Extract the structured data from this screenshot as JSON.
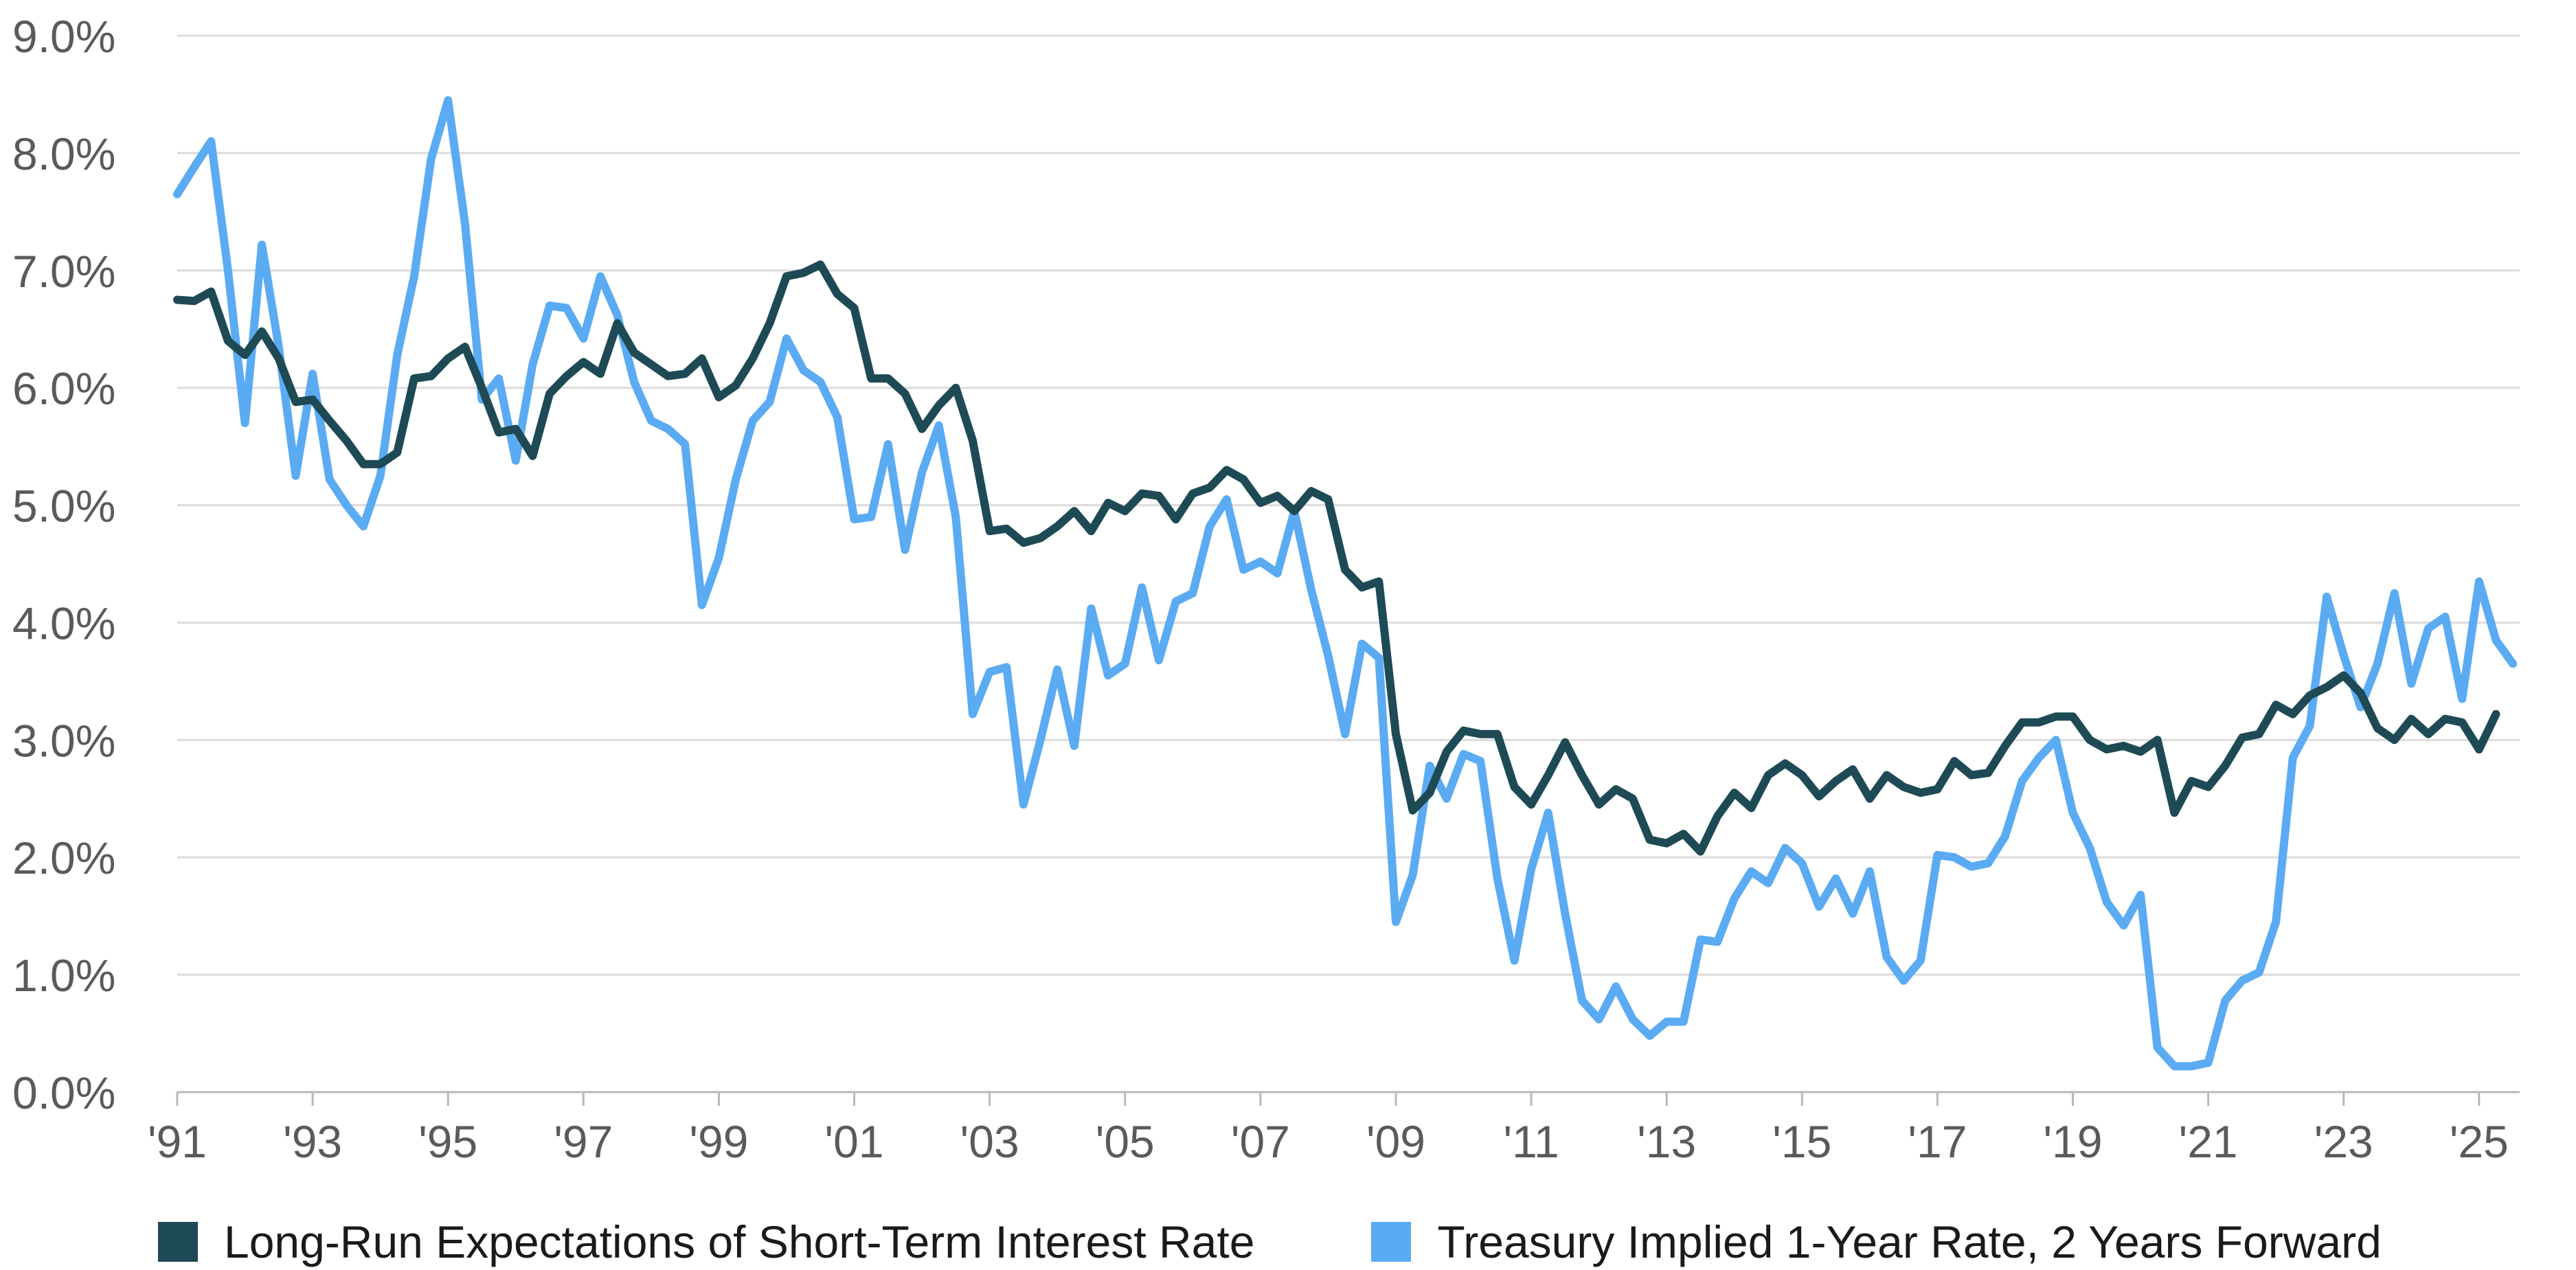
{
  "chart_data": {
    "type": "line",
    "ylim": [
      0,
      9
    ],
    "xlim": [
      1991,
      2025.6
    ],
    "y_ticks": [
      {
        "value": 0,
        "label": "0.0%"
      },
      {
        "value": 1,
        "label": "1.0%"
      },
      {
        "value": 2,
        "label": "2.0%"
      },
      {
        "value": 3,
        "label": "3.0%"
      },
      {
        "value": 4,
        "label": "4.0%"
      },
      {
        "value": 5,
        "label": "5.0%"
      },
      {
        "value": 6,
        "label": "6.0%"
      },
      {
        "value": 7,
        "label": "7.0%"
      },
      {
        "value": 8,
        "label": "8.0%"
      },
      {
        "value": 9,
        "label": "9.0%"
      }
    ],
    "x_ticks": [
      {
        "value": 1991,
        "label": "'91"
      },
      {
        "value": 1993,
        "label": "'93"
      },
      {
        "value": 1995,
        "label": "'95"
      },
      {
        "value": 1997,
        "label": "'97"
      },
      {
        "value": 1999,
        "label": "'99"
      },
      {
        "value": 2001,
        "label": "'01"
      },
      {
        "value": 2003,
        "label": "'03"
      },
      {
        "value": 2005,
        "label": "'05"
      },
      {
        "value": 2007,
        "label": "'07"
      },
      {
        "value": 2009,
        "label": "'09"
      },
      {
        "value": 2011,
        "label": "'11"
      },
      {
        "value": 2013,
        "label": "'13"
      },
      {
        "value": 2015,
        "label": "'15"
      },
      {
        "value": 2017,
        "label": "'17"
      },
      {
        "value": 2019,
        "label": "'19"
      },
      {
        "value": 2021,
        "label": "'21"
      },
      {
        "value": 2023,
        "label": "'23"
      },
      {
        "value": 2025,
        "label": "'25"
      }
    ],
    "grid": "horizontal",
    "legend_position": "bottom",
    "series": [
      {
        "name": "Long-Run Expectations of Short-Term Interest Rate",
        "color": "#1e4a55",
        "points": [
          [
            1991.0,
            6.75
          ],
          [
            1991.25,
            6.74
          ],
          [
            1991.5,
            6.82
          ],
          [
            1991.75,
            6.4
          ],
          [
            1992.0,
            6.28
          ],
          [
            1992.25,
            6.48
          ],
          [
            1992.5,
            6.25
          ],
          [
            1992.75,
            5.88
          ],
          [
            1993.0,
            5.9
          ],
          [
            1993.25,
            5.72
          ],
          [
            1993.5,
            5.55
          ],
          [
            1993.75,
            5.35
          ],
          [
            1994.0,
            5.35
          ],
          [
            1994.25,
            5.45
          ],
          [
            1994.5,
            6.08
          ],
          [
            1994.75,
            6.1
          ],
          [
            1995.0,
            6.25
          ],
          [
            1995.25,
            6.35
          ],
          [
            1995.5,
            6.0
          ],
          [
            1995.75,
            5.62
          ],
          [
            1996.0,
            5.65
          ],
          [
            1996.25,
            5.42
          ],
          [
            1996.5,
            5.95
          ],
          [
            1996.75,
            6.1
          ],
          [
            1997.0,
            6.22
          ],
          [
            1997.25,
            6.12
          ],
          [
            1997.5,
            6.55
          ],
          [
            1997.75,
            6.3
          ],
          [
            1998.0,
            6.2
          ],
          [
            1998.25,
            6.1
          ],
          [
            1998.5,
            6.12
          ],
          [
            1998.75,
            6.25
          ],
          [
            1999.0,
            5.92
          ],
          [
            1999.25,
            6.02
          ],
          [
            1999.5,
            6.25
          ],
          [
            1999.75,
            6.55
          ],
          [
            2000.0,
            6.95
          ],
          [
            2000.25,
            6.98
          ],
          [
            2000.5,
            7.05
          ],
          [
            2000.75,
            6.8
          ],
          [
            2001.0,
            6.68
          ],
          [
            2001.25,
            6.08
          ],
          [
            2001.5,
            6.08
          ],
          [
            2001.75,
            5.95
          ],
          [
            2002.0,
            5.65
          ],
          [
            2002.25,
            5.85
          ],
          [
            2002.5,
            6.0
          ],
          [
            2002.75,
            5.55
          ],
          [
            2003.0,
            4.78
          ],
          [
            2003.25,
            4.8
          ],
          [
            2003.5,
            4.68
          ],
          [
            2003.75,
            4.72
          ],
          [
            2004.0,
            4.82
          ],
          [
            2004.25,
            4.95
          ],
          [
            2004.5,
            4.78
          ],
          [
            2004.75,
            5.02
          ],
          [
            2005.0,
            4.95
          ],
          [
            2005.25,
            5.1
          ],
          [
            2005.5,
            5.08
          ],
          [
            2005.75,
            4.88
          ],
          [
            2006.0,
            5.1
          ],
          [
            2006.25,
            5.15
          ],
          [
            2006.5,
            5.3
          ],
          [
            2006.75,
            5.22
          ],
          [
            2007.0,
            5.02
          ],
          [
            2007.25,
            5.08
          ],
          [
            2007.5,
            4.95
          ],
          [
            2007.75,
            5.12
          ],
          [
            2008.0,
            5.05
          ],
          [
            2008.25,
            4.45
          ],
          [
            2008.5,
            4.3
          ],
          [
            2008.75,
            4.35
          ],
          [
            2009.0,
            3.05
          ],
          [
            2009.25,
            2.4
          ],
          [
            2009.5,
            2.55
          ],
          [
            2009.75,
            2.9
          ],
          [
            2010.0,
            3.08
          ],
          [
            2010.25,
            3.05
          ],
          [
            2010.5,
            3.05
          ],
          [
            2010.75,
            2.6
          ],
          [
            2011.0,
            2.45
          ],
          [
            2011.25,
            2.7
          ],
          [
            2011.5,
            2.98
          ],
          [
            2011.75,
            2.7
          ],
          [
            2012.0,
            2.45
          ],
          [
            2012.25,
            2.58
          ],
          [
            2012.5,
            2.5
          ],
          [
            2012.75,
            2.15
          ],
          [
            2013.0,
            2.12
          ],
          [
            2013.25,
            2.2
          ],
          [
            2013.5,
            2.05
          ],
          [
            2013.75,
            2.35
          ],
          [
            2014.0,
            2.55
          ],
          [
            2014.25,
            2.42
          ],
          [
            2014.5,
            2.7
          ],
          [
            2014.75,
            2.8
          ],
          [
            2015.0,
            2.7
          ],
          [
            2015.25,
            2.52
          ],
          [
            2015.5,
            2.65
          ],
          [
            2015.75,
            2.75
          ],
          [
            2016.0,
            2.5
          ],
          [
            2016.25,
            2.7
          ],
          [
            2016.5,
            2.6
          ],
          [
            2016.75,
            2.55
          ],
          [
            2017.0,
            2.58
          ],
          [
            2017.25,
            2.82
          ],
          [
            2017.5,
            2.7
          ],
          [
            2017.75,
            2.72
          ],
          [
            2018.0,
            2.95
          ],
          [
            2018.25,
            3.15
          ],
          [
            2018.5,
            3.15
          ],
          [
            2018.75,
            3.2
          ],
          [
            2019.0,
            3.2
          ],
          [
            2019.25,
            3.0
          ],
          [
            2019.5,
            2.92
          ],
          [
            2019.75,
            2.95
          ],
          [
            2020.0,
            2.9
          ],
          [
            2020.25,
            3.0
          ],
          [
            2020.5,
            2.38
          ],
          [
            2020.75,
            2.65
          ],
          [
            2021.0,
            2.6
          ],
          [
            2021.25,
            2.78
          ],
          [
            2021.5,
            3.02
          ],
          [
            2021.75,
            3.05
          ],
          [
            2022.0,
            3.3
          ],
          [
            2022.25,
            3.22
          ],
          [
            2022.5,
            3.38
          ],
          [
            2022.75,
            3.45
          ],
          [
            2023.0,
            3.55
          ],
          [
            2023.25,
            3.4
          ],
          [
            2023.5,
            3.1
          ],
          [
            2023.75,
            3.0
          ],
          [
            2024.0,
            3.18
          ],
          [
            2024.25,
            3.05
          ],
          [
            2024.5,
            3.18
          ],
          [
            2024.75,
            3.15
          ],
          [
            2025.0,
            2.92
          ],
          [
            2025.25,
            3.22
          ]
        ]
      },
      {
        "name": "Treasury Implied 1-Year Rate, 2 Years Forward",
        "color": "#5aabf2",
        "points": [
          [
            1991.0,
            7.65
          ],
          [
            1991.25,
            7.88
          ],
          [
            1991.5,
            8.1
          ],
          [
            1991.75,
            7.0
          ],
          [
            1992.0,
            5.7
          ],
          [
            1992.25,
            7.22
          ],
          [
            1992.5,
            6.35
          ],
          [
            1992.75,
            5.25
          ],
          [
            1993.0,
            6.12
          ],
          [
            1993.25,
            5.22
          ],
          [
            1993.5,
            5.0
          ],
          [
            1993.75,
            4.82
          ],
          [
            1994.0,
            5.25
          ],
          [
            1994.25,
            6.28
          ],
          [
            1994.5,
            6.95
          ],
          [
            1994.75,
            7.95
          ],
          [
            1995.0,
            8.45
          ],
          [
            1995.25,
            7.4
          ],
          [
            1995.5,
            5.9
          ],
          [
            1995.75,
            6.08
          ],
          [
            1996.0,
            5.38
          ],
          [
            1996.25,
            6.2
          ],
          [
            1996.5,
            6.7
          ],
          [
            1996.75,
            6.68
          ],
          [
            1997.0,
            6.42
          ],
          [
            1997.25,
            6.95
          ],
          [
            1997.5,
            6.62
          ],
          [
            1997.75,
            6.05
          ],
          [
            1998.0,
            5.72
          ],
          [
            1998.25,
            5.65
          ],
          [
            1998.5,
            5.52
          ],
          [
            1998.75,
            4.15
          ],
          [
            1999.0,
            4.55
          ],
          [
            1999.25,
            5.22
          ],
          [
            1999.5,
            5.72
          ],
          [
            1999.75,
            5.88
          ],
          [
            2000.0,
            6.42
          ],
          [
            2000.25,
            6.15
          ],
          [
            2000.5,
            6.05
          ],
          [
            2000.75,
            5.75
          ],
          [
            2001.0,
            4.88
          ],
          [
            2001.25,
            4.9
          ],
          [
            2001.5,
            5.52
          ],
          [
            2001.75,
            4.62
          ],
          [
            2002.0,
            5.28
          ],
          [
            2002.25,
            5.68
          ],
          [
            2002.5,
            4.9
          ],
          [
            2002.75,
            3.22
          ],
          [
            2003.0,
            3.58
          ],
          [
            2003.25,
            3.62
          ],
          [
            2003.5,
            2.45
          ],
          [
            2003.75,
            3.0
          ],
          [
            2004.0,
            3.6
          ],
          [
            2004.25,
            2.95
          ],
          [
            2004.5,
            4.12
          ],
          [
            2004.75,
            3.55
          ],
          [
            2005.0,
            3.65
          ],
          [
            2005.25,
            4.3
          ],
          [
            2005.5,
            3.68
          ],
          [
            2005.75,
            4.18
          ],
          [
            2006.0,
            4.25
          ],
          [
            2006.25,
            4.82
          ],
          [
            2006.5,
            5.05
          ],
          [
            2006.75,
            4.45
          ],
          [
            2007.0,
            4.52
          ],
          [
            2007.25,
            4.42
          ],
          [
            2007.5,
            4.95
          ],
          [
            2007.75,
            4.28
          ],
          [
            2008.0,
            3.72
          ],
          [
            2008.25,
            3.05
          ],
          [
            2008.5,
            3.82
          ],
          [
            2008.75,
            3.7
          ],
          [
            2009.0,
            1.45
          ],
          [
            2009.25,
            1.85
          ],
          [
            2009.5,
            2.78
          ],
          [
            2009.75,
            2.5
          ],
          [
            2010.0,
            2.88
          ],
          [
            2010.25,
            2.82
          ],
          [
            2010.5,
            1.82
          ],
          [
            2010.75,
            1.12
          ],
          [
            2011.0,
            1.9
          ],
          [
            2011.25,
            2.38
          ],
          [
            2011.5,
            1.52
          ],
          [
            2011.75,
            0.78
          ],
          [
            2012.0,
            0.62
          ],
          [
            2012.25,
            0.9
          ],
          [
            2012.5,
            0.62
          ],
          [
            2012.75,
            0.48
          ],
          [
            2013.0,
            0.6
          ],
          [
            2013.25,
            0.6
          ],
          [
            2013.5,
            1.3
          ],
          [
            2013.75,
            1.28
          ],
          [
            2014.0,
            1.65
          ],
          [
            2014.25,
            1.88
          ],
          [
            2014.5,
            1.78
          ],
          [
            2014.75,
            2.08
          ],
          [
            2015.0,
            1.95
          ],
          [
            2015.25,
            1.58
          ],
          [
            2015.5,
            1.82
          ],
          [
            2015.75,
            1.52
          ],
          [
            2016.0,
            1.88
          ],
          [
            2016.25,
            1.15
          ],
          [
            2016.5,
            0.95
          ],
          [
            2016.75,
            1.12
          ],
          [
            2017.0,
            2.02
          ],
          [
            2017.25,
            2.0
          ],
          [
            2017.5,
            1.92
          ],
          [
            2017.75,
            1.95
          ],
          [
            2018.0,
            2.18
          ],
          [
            2018.25,
            2.65
          ],
          [
            2018.5,
            2.85
          ],
          [
            2018.75,
            3.0
          ],
          [
            2019.0,
            2.38
          ],
          [
            2019.25,
            2.08
          ],
          [
            2019.5,
            1.62
          ],
          [
            2019.75,
            1.42
          ],
          [
            2020.0,
            1.68
          ],
          [
            2020.25,
            0.38
          ],
          [
            2020.5,
            0.22
          ],
          [
            2020.75,
            0.22
          ],
          [
            2021.0,
            0.25
          ],
          [
            2021.25,
            0.78
          ],
          [
            2021.5,
            0.95
          ],
          [
            2021.75,
            1.02
          ],
          [
            2022.0,
            1.45
          ],
          [
            2022.25,
            2.85
          ],
          [
            2022.5,
            3.12
          ],
          [
            2022.75,
            4.22
          ],
          [
            2023.0,
            3.72
          ],
          [
            2023.25,
            3.28
          ],
          [
            2023.5,
            3.65
          ],
          [
            2023.75,
            4.25
          ],
          [
            2024.0,
            3.48
          ],
          [
            2024.25,
            3.95
          ],
          [
            2024.5,
            4.05
          ],
          [
            2024.75,
            3.35
          ],
          [
            2025.0,
            4.35
          ],
          [
            2025.25,
            3.85
          ],
          [
            2025.5,
            3.65
          ]
        ]
      }
    ]
  }
}
